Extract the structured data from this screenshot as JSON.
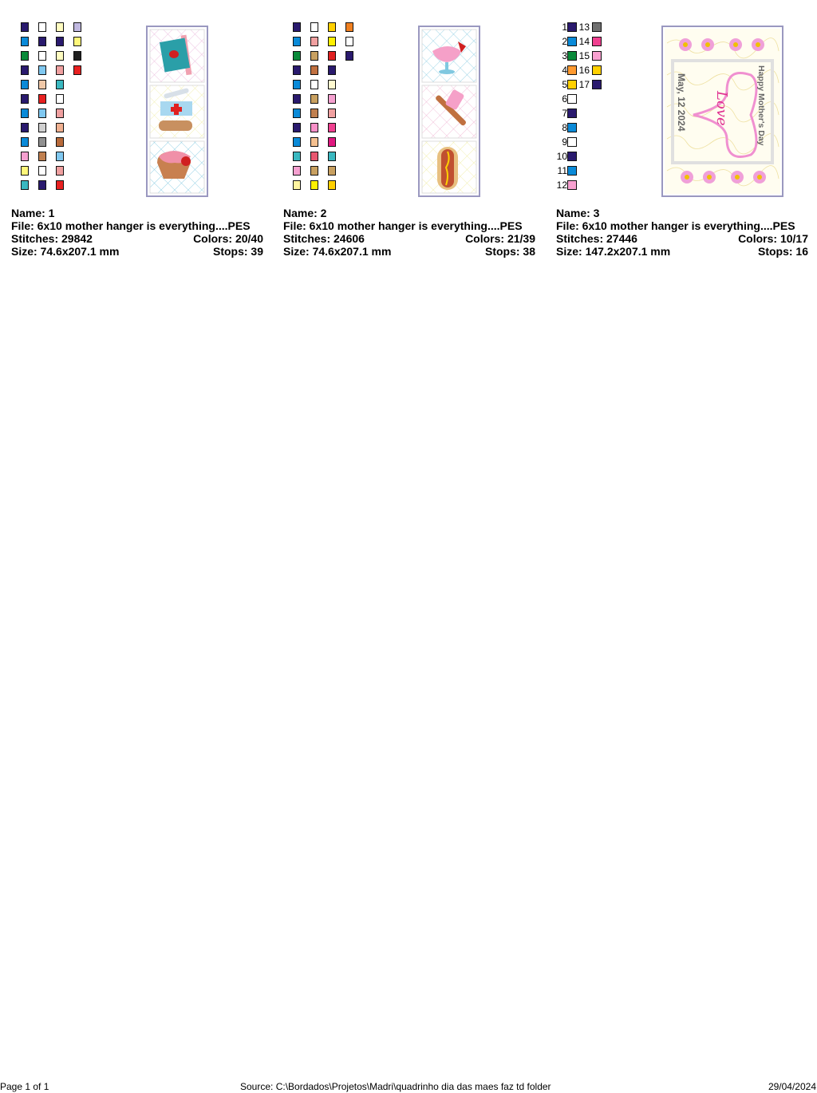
{
  "designs": [
    {
      "name_label": "Name: 1",
      "file_label": "File: 6x10 mother hanger is everything....PES",
      "stitches_label": "Stitches: 29842",
      "colors_label": "Colors: 20/40",
      "size_label": "Size: 74.6x207.1 mm",
      "stops_label": "Stops: 39",
      "swatch_columns": [
        [
          "#2a1a6e",
          "#0a8ad8",
          "#0a8a3a",
          "#2a1a6e",
          "#0a8ad8",
          "#2a1a6e",
          "#0a8ad8",
          "#2a1a6e",
          "#0a8ad8",
          "#f5a0d0",
          "#fff77a",
          "#3ab8c0"
        ],
        [
          "#ffffff",
          "#2a1a6e",
          "#ffffff",
          "#80c8f0",
          "#f0c8a8",
          "#e82020",
          "#80c8f0",
          "#d0d0d0",
          "#909090",
          "#c08050",
          "#ffffff",
          "#2a1a6e"
        ],
        [
          "#fffcc0",
          "#2a1a6e",
          "#fffcc0",
          "#f0a0a0",
          "#3ab8c0",
          "#ffffff",
          "#f0a0a0",
          "#f0b090",
          "#b86a3a",
          "#80c8f0",
          "#f0a0a0",
          "#e82020"
        ],
        [
          "#c0b8e0",
          "#fff77a",
          "#202020",
          "#e82020"
        ]
      ]
    },
    {
      "name_label": "Name: 2",
      "file_label": "File: 6x10 mother hanger is everything....PES",
      "stitches_label": "Stitches: 24606",
      "colors_label": "Colors: 21/39",
      "size_label": "Size: 74.6x207.1 mm",
      "stops_label": "Stops: 38",
      "swatch_columns": [
        [
          "#2a1a6e",
          "#0a8ad8",
          "#0a8a3a",
          "#2a1a6e",
          "#0a8ad8",
          "#2a1a6e",
          "#0a8ad8",
          "#2a1a6e",
          "#0a8ad8",
          "#3ab8c0",
          "#f5a0d0",
          "#fff5a0"
        ],
        [
          "#ffffff",
          "#f0a0a0",
          "#c8a060",
          "#c07040",
          "#ffffff",
          "#c8a060",
          "#c08050",
          "#f890c8",
          "#f5c090",
          "#e85870",
          "#c8a060",
          "#fff000"
        ],
        [
          "#ffd000",
          "#fff000",
          "#e02020",
          "#2a1a6e",
          "#fffad0",
          "#f5a0d0",
          "#f0a0a0",
          "#f04090",
          "#e01880",
          "#3ab8c0",
          "#c8a060",
          "#ffd000"
        ],
        [
          "#f08020",
          "#ffffff",
          "#2a1a6e"
        ]
      ]
    },
    {
      "name_label": "Name: 3",
      "file_label": "File: 6x10 mother hanger is everything....PES",
      "stitches_label": "Stitches: 27446",
      "colors_label": "Colors: 10/17",
      "size_label": "Size: 147.2x207.1 mm",
      "stops_label": "Stops: 16",
      "numbered_swatches": [
        {
          "n": "1",
          "color": "#2a1a6e"
        },
        {
          "n": "2",
          "color": "#0a8ad8"
        },
        {
          "n": "3",
          "color": "#0a8a3a"
        },
        {
          "n": "4",
          "color": "#ff9a30"
        },
        {
          "n": "5",
          "color": "#ffd000"
        },
        {
          "n": "6",
          "color": "#ffffff"
        },
        {
          "n": "7",
          "color": "#2a1a6e"
        },
        {
          "n": "8",
          "color": "#0a8ad8"
        },
        {
          "n": "9",
          "color": "#ffffff"
        },
        {
          "n": "10",
          "color": "#2a1a6e"
        },
        {
          "n": "11",
          "color": "#0a8ad8"
        },
        {
          "n": "12",
          "color": "#f8a0d0"
        },
        {
          "n": "13",
          "color": "#707070"
        },
        {
          "n": "14",
          "color": "#f04090"
        },
        {
          "n": "15",
          "color": "#f8a0d0"
        },
        {
          "n": "16",
          "color": "#ffd000"
        },
        {
          "n": "17",
          "color": "#2a1a6e"
        }
      ],
      "art_text": {
        "greeting": "Happy Mother's Day",
        "date": "May, 12 2024",
        "love": "Love"
      }
    }
  ],
  "footer": {
    "page": "Page 1 of 1",
    "source": "Source: C:\\Bordados\\Projetos\\Madri\\quadrinho dia das maes faz td folder",
    "date": "29/04/2024"
  }
}
